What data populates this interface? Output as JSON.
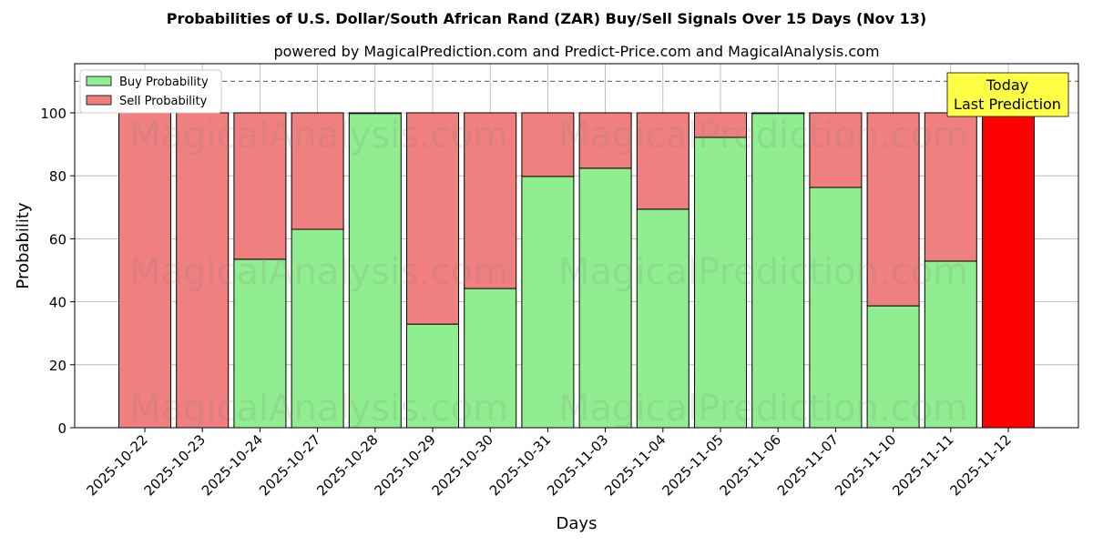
{
  "chart_data": {
    "type": "bar",
    "stacked": true,
    "title": "Probabilities of U.S. Dollar/South African Rand (ZAR) Buy/Sell Signals Over 15 Days (Nov 13)",
    "subtitle": "powered by MagicalPrediction.com and Predict-Price.com and MagicalAnalysis.com",
    "xlabel": "Days",
    "ylabel": "Probability",
    "ylim": [
      0,
      115.6
    ],
    "yticks": [
      0,
      20,
      40,
      60,
      80,
      100
    ],
    "grid": true,
    "legend_position": "top-left",
    "threshold_line": 110,
    "categories": [
      "2025-10-22",
      "2025-10-23",
      "2025-10-24",
      "2025-10-27",
      "2025-10-28",
      "2025-10-29",
      "2025-10-30",
      "2025-10-31",
      "2025-11-03",
      "2025-11-04",
      "2025-11-05",
      "2025-11-06",
      "2025-11-07",
      "2025-11-10",
      "2025-11-11",
      "2025-11-12"
    ],
    "series": [
      {
        "name": "Buy Probability",
        "color": "#90ee90",
        "values": [
          0,
          0,
          53.5,
          63.0,
          99.8,
          32.9,
          44.2,
          79.8,
          82.4,
          69.4,
          92.2,
          99.8,
          76.3,
          38.7,
          52.9,
          0
        ]
      },
      {
        "name": "Sell Probability",
        "color": "#f08080",
        "values": [
          100,
          100,
          46.5,
          37.0,
          0.2,
          67.1,
          55.8,
          20.2,
          17.6,
          30.6,
          7.8,
          0.2,
          23.7,
          61.3,
          47.1,
          100
        ]
      }
    ],
    "highlight": {
      "index": 15,
      "color": "#ff0000"
    },
    "annotation": {
      "line1": "Today",
      "line2": "Last Prediction",
      "bg": "#ffff44"
    },
    "watermarks": [
      "MagicalAnalysis.com",
      "MagicalPrediction.com"
    ]
  }
}
